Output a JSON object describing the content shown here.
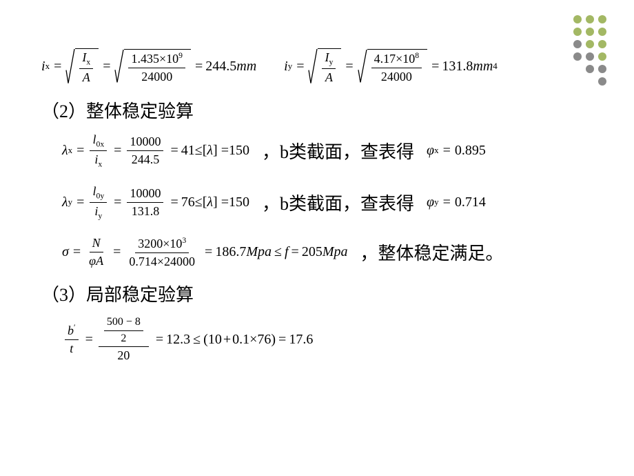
{
  "decoration": {
    "rows": [
      [
        "#a3b864",
        "#a3b864",
        "#a3b864"
      ],
      [
        "#a3b864",
        "#a3b864",
        "#a3b864"
      ],
      [
        "#8a8a8a",
        "#a3b864",
        "#a3b864"
      ],
      [
        "#8a8a8a",
        "#8a8a8a",
        "#a3b864"
      ],
      [
        "",
        "#8a8a8a",
        "#8a8a8a"
      ],
      [
        "",
        "",
        "#8a8a8a"
      ]
    ]
  },
  "eq_ix": {
    "lhs_var": "i",
    "lhs_sub": "x",
    "inner_num_var": "I",
    "inner_num_sub": "x",
    "inner_den": "A",
    "val_num": "1.435×10",
    "val_num_sup": "9",
    "val_den": "24000",
    "result": "244.5",
    "unit": "mm"
  },
  "eq_iy": {
    "lhs_var": "i",
    "lhs_sub": "y",
    "inner_num_var": "I",
    "inner_num_sub": "y",
    "inner_den": "A",
    "val_num": "4.17×10",
    "val_num_sup": "8",
    "val_den": "24000",
    "result": "131.8",
    "unit": "mm",
    "unit_sup": "4"
  },
  "heading2": "（2）整体稳定验算",
  "lambda_x": {
    "sym": "λ",
    "sub": "x",
    "f_num": "l",
    "f_num_sub": "0x",
    "f_den": "i",
    "f_den_sub": "x",
    "v_num": "10000",
    "v_den": "244.5",
    "val": "41",
    "cmp": "≤",
    "limit_var": "λ",
    "limit": "150",
    "note": "，b类截面，查表得",
    "phi_sym": "φ",
    "phi_sub": "x",
    "phi_val": "0.895"
  },
  "lambda_y": {
    "sym": "λ",
    "sub": "y",
    "f_num": "l",
    "f_num_sub": "0y",
    "f_den": "i",
    "f_den_sub": "y",
    "v_num": "10000",
    "v_den": "131.8",
    "val": "76",
    "cmp": "≤",
    "limit_var": "λ",
    "limit": "150",
    "note": "，b类截面，查表得",
    "phi_sym": "φ",
    "phi_sub": "y",
    "phi_val": "0.714"
  },
  "sigma": {
    "sym": "σ",
    "f_num": "N",
    "f_den": "φA",
    "v_num": "3200×10",
    "v_num_sup": "3",
    "v_den": "0.714×24000",
    "val": "186.7",
    "unit1": "Mpa",
    "cmp": "≤",
    "rhs_var": "f",
    "rhs_val": "205",
    "unit2": "Mpa",
    "note": "，整体稳定满足。"
  },
  "heading3": "（3）局部稳定验算",
  "bt": {
    "lhs_num": "b",
    "lhs_num_sup": "′",
    "lhs_den": "t",
    "inner_top": "500 − 8",
    "inner_top_den": "2",
    "outer_den": "20",
    "val": "12.3",
    "cmp": "≤",
    "rhs_open": "(",
    "rhs_a": "10",
    "rhs_plus": "+",
    "rhs_b": "0.1×76",
    "rhs_close": ")",
    "rhs_val": "17.6"
  }
}
